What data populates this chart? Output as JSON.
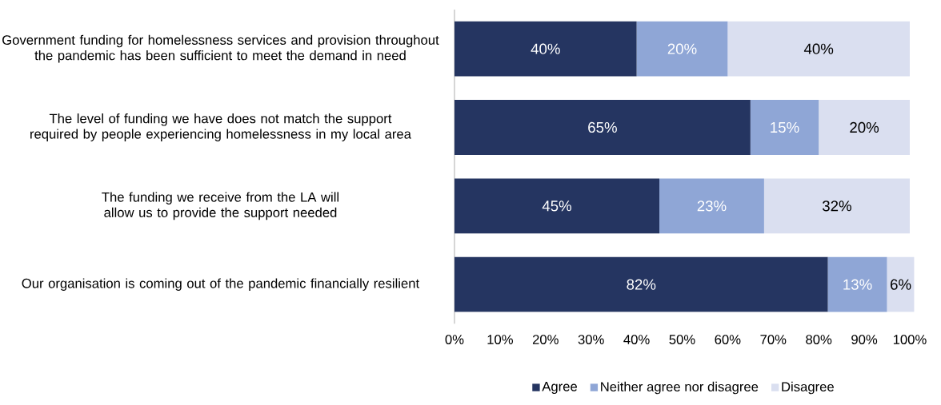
{
  "chart_data": {
    "type": "bar",
    "orientation": "horizontal",
    "stacked": true,
    "categories": [
      "Government funding for homelessness services and provision throughout the pandemic has been sufficient to meet the demand in need",
      "The level of funding we have does not match the support required by people experiencing homelessness in my local area",
      "The funding we receive from the LA will allow us to provide the support needed",
      "Our organisation is coming out of the pandemic financially resilient"
    ],
    "series": [
      {
        "name": "Agree",
        "color": "#253561",
        "values": [
          40,
          65,
          45,
          82
        ],
        "value_labels": [
          "40%",
          "65%",
          "45%",
          "82%"
        ]
      },
      {
        "name": "Neither agree nor disagree",
        "color": "#8fa6d6",
        "values": [
          20,
          15,
          23,
          13
        ],
        "value_labels": [
          "20%",
          "15%",
          "23%",
          "13%"
        ]
      },
      {
        "name": "Disagree",
        "color": "#dadff0",
        "values": [
          40,
          20,
          32,
          6
        ],
        "value_labels": [
          "40%",
          "20%",
          "32%",
          "6%"
        ]
      }
    ],
    "xlim": [
      0,
      101
    ],
    "xticks": [
      {
        "value": 0,
        "label": "0%"
      },
      {
        "value": 10,
        "label": "10%"
      },
      {
        "value": 20,
        "label": "20%"
      },
      {
        "value": 30,
        "label": "30%"
      },
      {
        "value": 40,
        "label": "40%"
      },
      {
        "value": 50,
        "label": "50%"
      },
      {
        "value": 60,
        "label": "60%"
      },
      {
        "value": 70,
        "label": "70%"
      },
      {
        "value": 80,
        "label": "80%"
      },
      {
        "value": 90,
        "label": "90%"
      },
      {
        "value": 100,
        "label": "100%"
      }
    ],
    "grid": false,
    "legend": "bottom"
  }
}
